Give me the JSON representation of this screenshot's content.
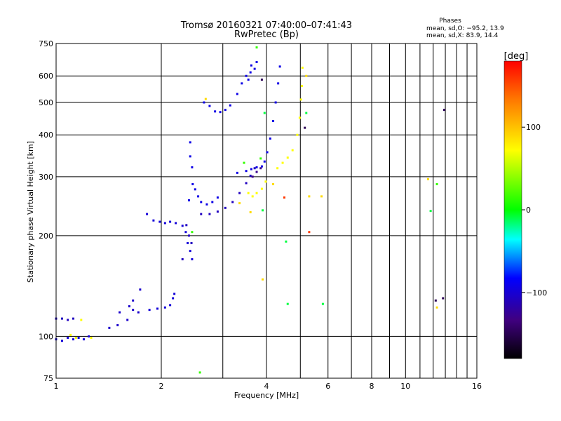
{
  "chart_data": {
    "type": "scatter",
    "title": "Tromsø 20160321 07:40:00–07:41:43",
    "subtitle": "RwPretec (Bp)",
    "xlabel": "Frequency [MHz]",
    "ylabel": "Stationary phase Virtual Height [km]",
    "x_scale": "log",
    "y_scale": "log",
    "xlim": [
      1,
      16
    ],
    "ylim": [
      75,
      750
    ],
    "x_ticks": [
      1,
      2,
      4,
      6,
      8,
      10,
      16
    ],
    "x_minor_ticks": [
      3,
      5,
      7,
      9,
      11,
      12,
      13,
      14,
      15
    ],
    "y_ticks": [
      75,
      100,
      200,
      300,
      400,
      500,
      600,
      750
    ],
    "grid": true,
    "phases_info": {
      "header": "Phases",
      "line_o": "mean, sd,O: −95.2, 13.9",
      "line_x": "mean, sd,X:  83.9, 14.4"
    },
    "colorbar": {
      "label": "[deg]",
      "range": [
        -180,
        180
      ],
      "ticks": [
        100,
        0,
        -100
      ],
      "colors": [
        "#ff0000",
        "#ff8000",
        "#ffff00",
        "#00ff00",
        "#00ffff",
        "#0000ff",
        "#400080",
        "#000000"
      ]
    },
    "series": [
      {
        "points": [
          [
            1.0,
            113
          ],
          [
            1.04,
            113
          ],
          [
            1.08,
            112
          ],
          [
            1.12,
            113
          ]
        ],
        "phase": -110
      },
      {
        "points": [
          [
            1.0,
            98
          ],
          [
            1.04,
            97
          ],
          [
            1.08,
            99
          ],
          [
            1.12,
            98
          ],
          [
            1.16,
            99
          ],
          [
            1.2,
            98
          ],
          [
            1.24,
            100
          ]
        ],
        "phase": -100
      },
      {
        "points": [
          [
            1.1,
            101
          ],
          [
            1.14,
            99
          ],
          [
            1.26,
            99
          ],
          [
            1.18,
            112
          ]
        ],
        "phase": 100
      },
      {
        "points": [
          [
            1.42,
            106
          ],
          [
            1.5,
            108
          ],
          [
            1.6,
            112
          ],
          [
            1.52,
            118
          ],
          [
            1.62,
            123
          ],
          [
            1.66,
            120
          ],
          [
            1.72,
            118
          ],
          [
            1.66,
            128
          ],
          [
            1.74,
            138
          ]
        ],
        "phase": -105
      },
      {
        "points": [
          [
            1.85,
            120
          ],
          [
            1.95,
            121
          ],
          [
            2.05,
            122
          ],
          [
            2.12,
            124
          ],
          [
            2.16,
            130
          ],
          [
            2.18,
            134
          ]
        ],
        "phase": -100
      },
      {
        "points": [
          [
            1.82,
            232
          ],
          [
            1.9,
            222
          ],
          [
            1.98,
            220
          ],
          [
            2.05,
            218
          ],
          [
            2.12,
            220
          ],
          [
            2.2,
            218
          ],
          [
            2.3,
            214
          ],
          [
            2.35,
            205
          ],
          [
            2.38,
            190
          ],
          [
            2.42,
            180
          ],
          [
            2.45,
            170
          ]
        ],
        "phase": -100
      },
      {
        "points": [
          [
            2.36,
            215
          ],
          [
            2.4,
            200
          ],
          [
            2.44,
            190
          ],
          [
            2.3,
            170
          ]
        ],
        "phase": -110
      },
      {
        "points": [
          [
            2.42,
            380
          ],
          [
            2.42,
            345
          ],
          [
            2.45,
            320
          ],
          [
            2.46,
            285
          ],
          [
            2.5,
            275
          ],
          [
            2.55,
            262
          ],
          [
            2.6,
            252
          ],
          [
            2.7,
            248
          ],
          [
            2.8,
            252
          ],
          [
            2.9,
            260
          ],
          [
            2.4,
            255
          ]
        ],
        "phase": -95
      },
      {
        "points": [
          [
            2.6,
            232
          ],
          [
            2.75,
            232
          ],
          [
            2.9,
            236
          ],
          [
            3.05,
            242
          ],
          [
            3.2,
            252
          ],
          [
            3.35,
            268
          ],
          [
            3.5,
            287
          ],
          [
            3.6,
            302
          ],
          [
            3.7,
            318
          ]
        ],
        "phase": -110
      },
      {
        "points": [
          [
            3.3,
            308
          ],
          [
            3.5,
            312
          ],
          [
            3.62,
            316
          ],
          [
            3.75,
            320
          ],
          [
            3.88,
            322
          ],
          [
            3.95,
            333
          ],
          [
            4.02,
            355
          ],
          [
            4.1,
            390
          ],
          [
            4.18,
            440
          ],
          [
            4.25,
            500
          ],
          [
            4.32,
            570
          ],
          [
            4.37,
            640
          ]
        ],
        "phase": -95
      },
      {
        "points": [
          [
            3.65,
            300
          ],
          [
            3.75,
            310
          ],
          [
            3.85,
            318
          ]
        ],
        "phase": -130
      },
      {
        "points": [
          [
            2.65,
            500
          ],
          [
            2.75,
            488
          ],
          [
            2.85,
            470
          ],
          [
            2.95,
            468
          ],
          [
            3.05,
            475
          ],
          [
            3.15,
            490
          ],
          [
            3.3,
            530
          ],
          [
            3.4,
            570
          ],
          [
            3.5,
            600
          ],
          [
            3.6,
            615
          ],
          [
            3.7,
            630
          ],
          [
            3.75,
            660
          ],
          [
            3.62,
            645
          ],
          [
            3.55,
            585
          ]
        ],
        "phase": -95
      },
      {
        "points": [
          [
            3.55,
            268
          ],
          [
            3.65,
            262
          ],
          [
            3.75,
            268
          ],
          [
            3.88,
            276
          ],
          [
            3.98,
            290
          ],
          [
            4.3,
            318
          ],
          [
            4.45,
            330
          ],
          [
            4.6,
            342
          ],
          [
            4.75,
            360
          ],
          [
            4.9,
            400
          ],
          [
            4.98,
            450
          ],
          [
            5.02,
            510
          ],
          [
            5.05,
            560
          ],
          [
            5.07,
            635
          ]
        ],
        "phase": 100
      },
      {
        "points": [
          [
            2.68,
            512
          ],
          [
            3.35,
            250
          ],
          [
            5.3,
            262
          ],
          [
            5.75,
            262
          ],
          [
            4.18,
            285
          ],
          [
            3.6,
            235
          ],
          [
            3.9,
            148
          ],
          [
            5.2,
            600
          ],
          [
            11.6,
            295
          ],
          [
            12.3,
            122
          ]
        ],
        "phase": 110
      },
      {
        "points": [
          [
            2.45,
            205
          ],
          [
            2.58,
            78
          ],
          [
            3.45,
            330
          ],
          [
            3.85,
            340
          ],
          [
            3.75,
            730
          ],
          [
            12.3,
            285
          ]
        ],
        "phase": 20
      },
      {
        "points": [
          [
            3.95,
            465
          ],
          [
            4.55,
            192
          ],
          [
            5.2,
            465
          ],
          [
            3.9,
            238
          ],
          [
            11.8,
            237
          ],
          [
            4.6,
            125
          ],
          [
            5.8,
            125
          ]
        ],
        "phase": -10
      },
      {
        "points": [
          [
            5.15,
            420
          ],
          [
            12.9,
            475
          ],
          [
            12.2,
            128
          ],
          [
            12.8,
            130
          ],
          [
            3.88,
            585
          ]
        ],
        "phase": -150
      },
      {
        "points": [
          [
            4.5,
            260
          ],
          [
            5.3,
            205
          ]
        ],
        "phase": 160
      }
    ]
  }
}
